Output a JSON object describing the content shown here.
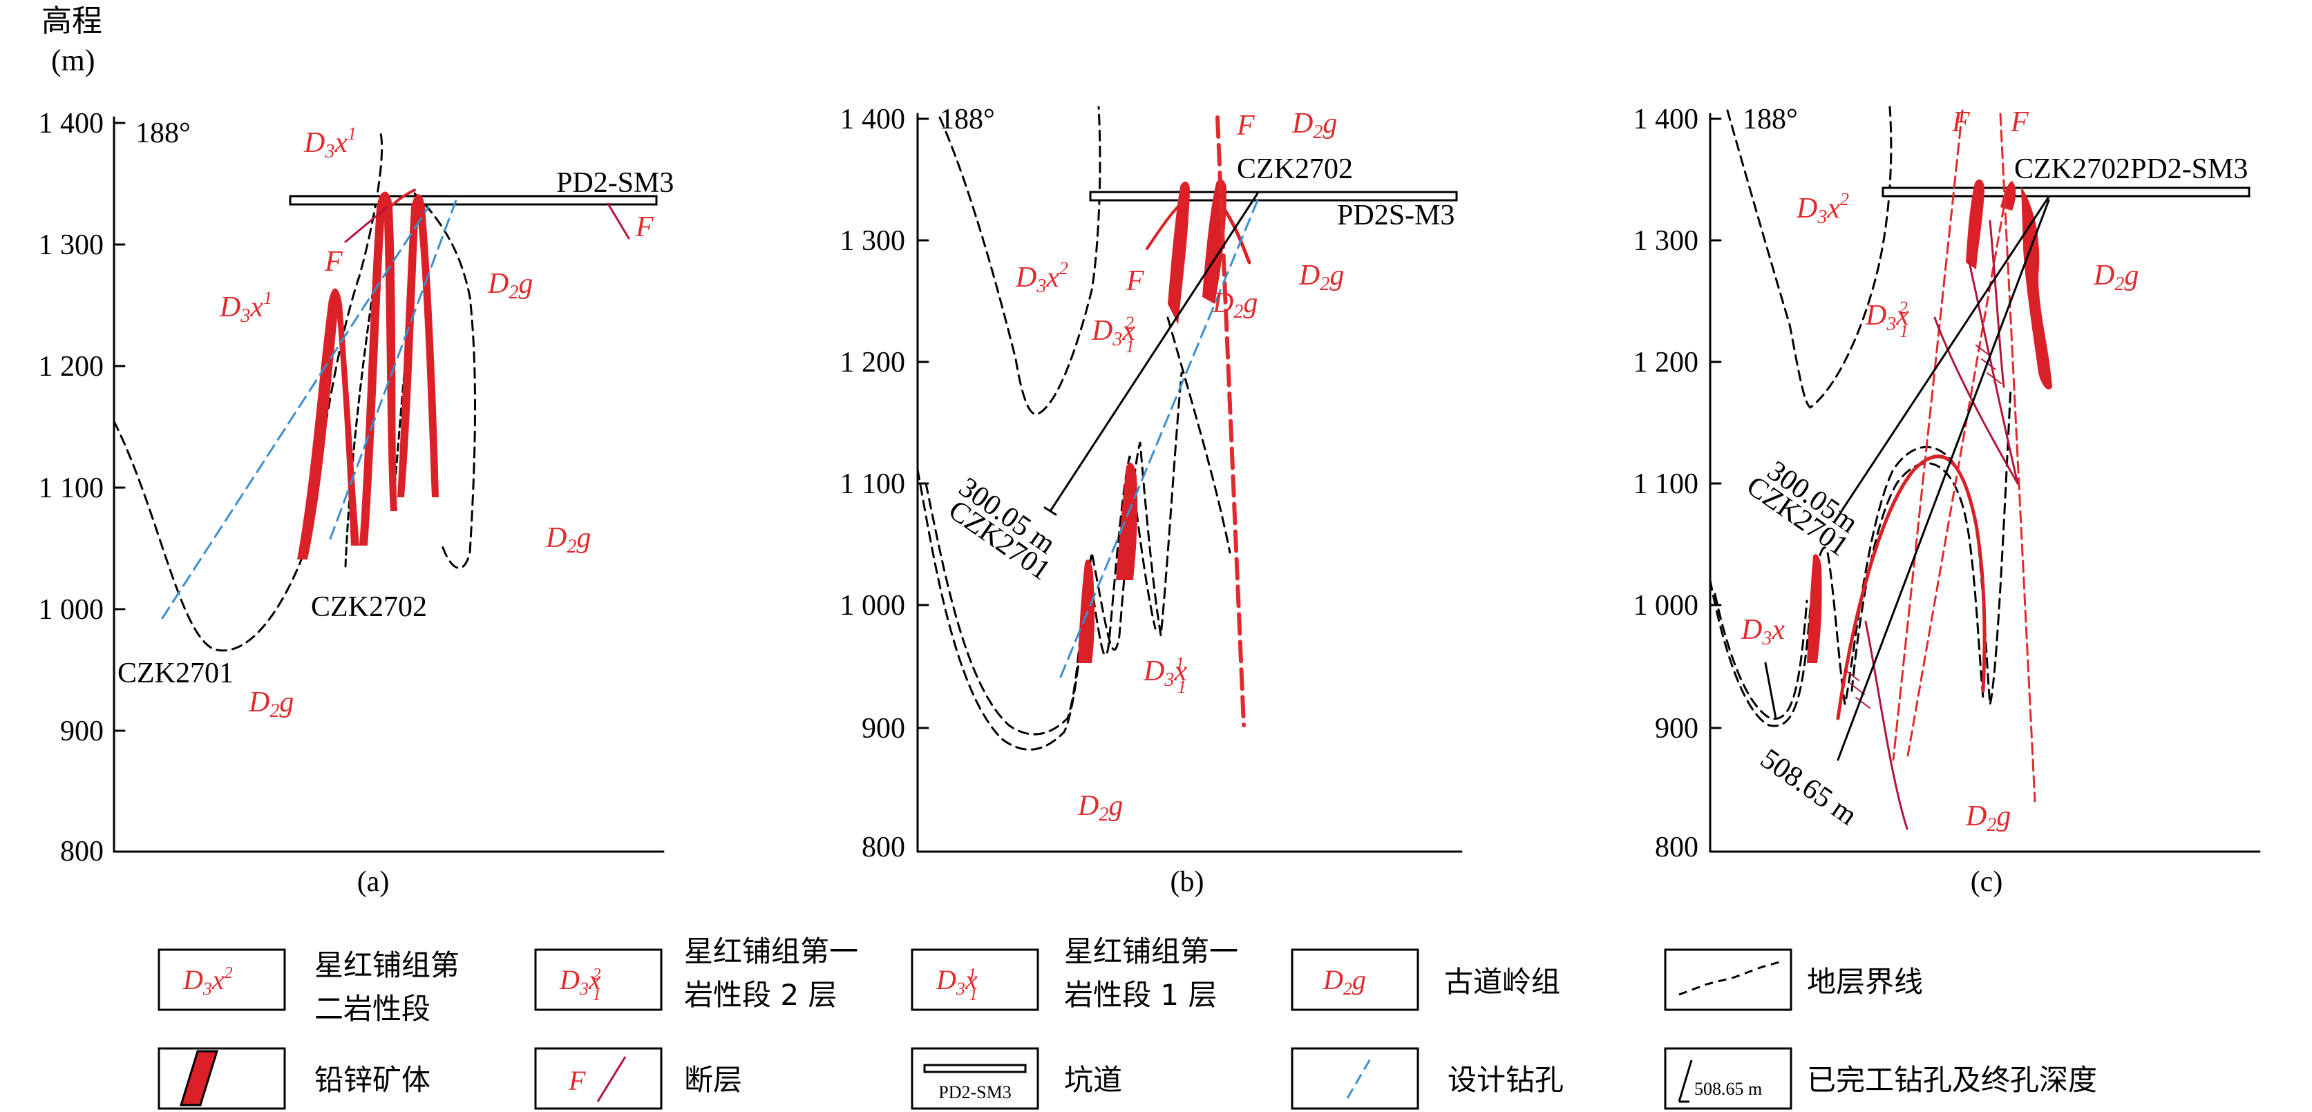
{
  "axis": {
    "unit_line1": "高程",
    "unit_line2": "(m)",
    "ticks": [
      "1 400",
      "1 300",
      "1 200",
      "1 100",
      "1 000",
      "900",
      "800"
    ]
  },
  "panels": [
    {
      "caption": "(a)",
      "azimuth": "188°",
      "labels": {
        "tunnel": "PD2-SM3",
        "hole1": "CZK2701",
        "hole2": "CZK2702",
        "fault1": "F",
        "fault2": "F"
      }
    },
    {
      "caption": "(b)",
      "azimuth": "188°",
      "labels": {
        "tunnel": "PD2S-M3",
        "hole1": "CZK2701",
        "hole2": "CZK2702",
        "depth": "300.05 m",
        "fault1": "F",
        "fault2": "F"
      }
    },
    {
      "caption": "(c)",
      "azimuth": "188°",
      "labels": {
        "tunnel": "CZK2702PD2-SM3",
        "hole1": "CZK2701",
        "depth1": "300.05m",
        "depth2": "508.65 m",
        "fault1": "F",
        "fault2": "F"
      }
    }
  ],
  "legend": {
    "items": [
      {
        "symbol": "D3x2",
        "text_line1": "星红铺组第",
        "text_line2": "二岩性段"
      },
      {
        "symbol": "D3x12",
        "text_line1": "星红铺组第一",
        "text_line2": "岩性段 2 层"
      },
      {
        "symbol": "D3x11",
        "text_line1": "星红铺组第一",
        "text_line2": "岩性段 1 层"
      },
      {
        "symbol": "D2g",
        "text_line1": "古道岭组"
      },
      {
        "symbol": "boundary",
        "text_line1": "地层界线"
      },
      {
        "symbol": "orebody",
        "text_line1": "铅锌矿体"
      },
      {
        "symbol": "fault",
        "text_line1": "断层",
        "box_text": "F"
      },
      {
        "symbol": "tunnel",
        "text_line1": "坑道",
        "box_text": "PD2-SM3"
      },
      {
        "symbol": "design-hole",
        "text_line1": "设计钻孔"
      },
      {
        "symbol": "finished-hole",
        "text_line1": "已完工钻孔及终孔深度",
        "box_text": "508.65 m"
      }
    ]
  },
  "colors": {
    "strata_red": "#e02a2e",
    "ore_red": "#d92127",
    "design_blue": "#3a8fd0",
    "fault_dark": "#b2163a"
  }
}
